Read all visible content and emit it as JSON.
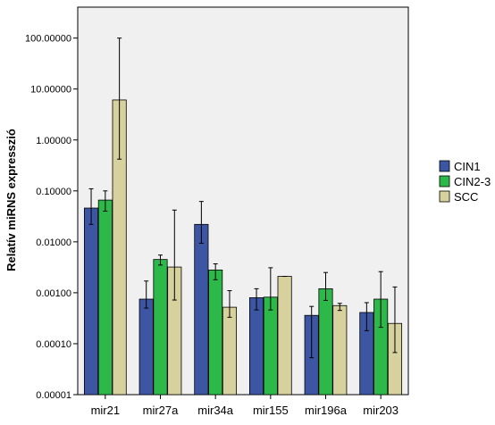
{
  "chart_data": {
    "type": "bar",
    "ylabel": "Relatív miRNS expresszió",
    "xlabel": "",
    "yscale": "log",
    "ylim": [
      1e-05,
      1000
    ],
    "grid": false,
    "legend_position": "right",
    "yticks": [
      {
        "value": 1e-05,
        "label": "0.00001"
      },
      {
        "value": 0.0001,
        "label": "0.00010"
      },
      {
        "value": 0.001,
        "label": "0.00100"
      },
      {
        "value": 0.01,
        "label": "0.01000"
      },
      {
        "value": 0.1,
        "label": "0.10000"
      },
      {
        "value": 1,
        "label": "1.00000"
      },
      {
        "value": 10,
        "label": "10.00000"
      },
      {
        "value": 100,
        "label": "100.00000"
      }
    ],
    "categories": [
      "mir21",
      "mir27a",
      "mir34a",
      "mir155",
      "mir196a",
      "mir203"
    ],
    "series": [
      {
        "name": "CIN1",
        "color": "#3c56a3",
        "values": [
          0.046,
          0.00075,
          0.022,
          0.0008,
          0.00036,
          0.00041
        ],
        "err_low": [
          0.022,
          0.0005,
          0.0094,
          0.00046,
          5.3e-05,
          0.00018
        ],
        "err_high": [
          0.11,
          0.0017,
          0.062,
          0.0012,
          0.00054,
          0.00064
        ]
      },
      {
        "name": "CIN2-3",
        "color": "#2db84a",
        "values": [
          0.066,
          0.0045,
          0.0028,
          0.00082,
          0.0012,
          0.00075
        ],
        "err_low": [
          0.04,
          0.0035,
          0.0018,
          0.00046,
          0.00071,
          0.00021
        ],
        "err_high": [
          0.1,
          0.0055,
          0.0037,
          0.0031,
          0.0025,
          0.0026
        ]
      },
      {
        "name": "SCC",
        "color": "#d7d19e",
        "values": [
          6.1,
          0.0032,
          0.00052,
          0.0021,
          0.00056,
          0.00025
        ],
        "err_low": [
          0.42,
          0.00072,
          0.00033,
          0.0021,
          0.00045,
          6.7e-05
        ],
        "err_high": [
          100,
          0.042,
          0.0011,
          0.0021,
          0.00062,
          0.0013
        ]
      }
    ]
  }
}
